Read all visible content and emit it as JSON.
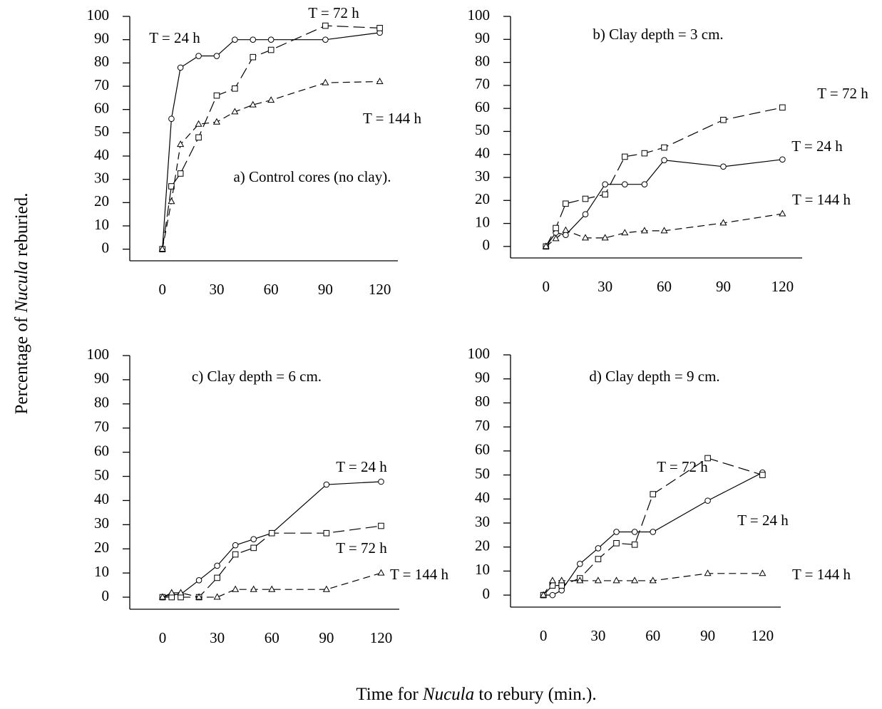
{
  "figure": {
    "y_label": {
      "before": "Percentage of",
      "italic": "Nucula",
      "after": "reburied."
    },
    "x_label": {
      "before": "Time for",
      "italic": "Nucula",
      "after": "to rebury (min.)."
    }
  },
  "chart_data": [
    {
      "type": "line",
      "title": "a) Control cores (no clay).",
      "xlim": [
        -18,
        130
      ],
      "ylim": [
        -5,
        100
      ],
      "xticks": [
        0,
        30,
        60,
        90,
        120
      ],
      "yticks": [
        0,
        10,
        20,
        30,
        40,
        50,
        60,
        70,
        80,
        90,
        100
      ],
      "x": [
        0,
        5,
        10,
        20,
        30,
        40,
        50,
        60,
        90,
        120
      ],
      "series": [
        {
          "name": "T = 24 h",
          "color": "#000000",
          "marker": "circle",
          "dash": "solid",
          "values": [
            0,
            56,
            78,
            83,
            83,
            90,
            90,
            90,
            90,
            93
          ]
        },
        {
          "name": "T = 72 h",
          "color": "#000000",
          "marker": "square",
          "dash": "long",
          "values": [
            0,
            27,
            32.5,
            48,
            66,
            69,
            82.5,
            85.6,
            96,
            95
          ]
        },
        {
          "name": "T = 144 h",
          "color": "#000000",
          "marker": "triangle",
          "dash": "medium",
          "values": [
            0,
            20.5,
            45,
            53.7,
            54.6,
            59,
            62,
            64,
            71.5,
            72
          ]
        }
      ]
    },
    {
      "type": "line",
      "title": "b)  Clay depth =  3 cm.",
      "xlim": [
        -18,
        130
      ],
      "ylim": [
        -5,
        100
      ],
      "xticks": [
        0,
        30,
        60,
        90,
        120
      ],
      "yticks": [
        0,
        10,
        20,
        30,
        40,
        50,
        60,
        70,
        80,
        90,
        100
      ],
      "x": [
        0,
        5,
        10,
        20,
        30,
        40,
        50,
        60,
        90,
        120
      ],
      "series": [
        {
          "name": "T = 24 h",
          "color": "#000000",
          "marker": "circle",
          "dash": "solid",
          "values": [
            0,
            6,
            5,
            14,
            27,
            27,
            27,
            37.5,
            34.7,
            37.8
          ]
        },
        {
          "name": "T = 72 h",
          "color": "#000000",
          "marker": "square",
          "dash": "long",
          "values": [
            0,
            8,
            18.6,
            20.7,
            22.6,
            39,
            40.5,
            43,
            55,
            60.4
          ]
        },
        {
          "name": "T = 144 h",
          "color": "#000000",
          "marker": "triangle",
          "dash": "medium",
          "values": [
            0,
            3.4,
            7,
            3.7,
            3.7,
            5.9,
            6.8,
            6.8,
            10.2,
            14.2
          ]
        }
      ]
    },
    {
      "type": "line",
      "title": "c) Clay depth = 6 cm.",
      "xlim": [
        -18,
        130
      ],
      "ylim": [
        -5,
        100
      ],
      "xticks": [
        0,
        30,
        60,
        90,
        120
      ],
      "yticks": [
        0,
        10,
        20,
        30,
        40,
        50,
        60,
        70,
        80,
        90,
        100
      ],
      "x": [
        0,
        5,
        10,
        20,
        30,
        40,
        50,
        60,
        90,
        120
      ],
      "series": [
        {
          "name": "T = 24 h",
          "color": "#000000",
          "marker": "circle",
          "dash": "solid",
          "values": [
            0,
            1,
            1.2,
            7,
            13,
            21.5,
            24,
            26.5,
            46.6,
            47.8
          ]
        },
        {
          "name": "T = 72 h",
          "color": "#000000",
          "marker": "square",
          "dash": "long",
          "values": [
            0,
            0,
            0,
            0,
            8,
            17.7,
            20.4,
            26.5,
            26.5,
            29.5
          ]
        },
        {
          "name": "T = 144 h",
          "color": "#000000",
          "marker": "triangle",
          "dash": "medium",
          "values": [
            0,
            1.8,
            1.8,
            0,
            0,
            3.2,
            3.2,
            3.2,
            3.2,
            10
          ]
        }
      ]
    },
    {
      "type": "line",
      "title": "d) Clay depth = 9 cm.",
      "xlim": [
        -18,
        130
      ],
      "ylim": [
        -5,
        100
      ],
      "xticks": [
        0,
        30,
        60,
        90,
        120
      ],
      "yticks": [
        0,
        10,
        20,
        30,
        40,
        50,
        60,
        70,
        80,
        90,
        100
      ],
      "x": [
        0,
        5,
        10,
        20,
        30,
        40,
        50,
        60,
        90,
        120
      ],
      "series": [
        {
          "name": "T = 24 h",
          "color": "#000000",
          "marker": "circle",
          "dash": "solid",
          "values": [
            0,
            0,
            2,
            13,
            19.5,
            26.3,
            26.3,
            26.3,
            39.3,
            51
          ]
        },
        {
          "name": "T = 72 h",
          "color": "#000000",
          "marker": "square",
          "dash": "long",
          "values": [
            0,
            4,
            4,
            7,
            15,
            21.6,
            21,
            42,
            57,
            50
          ]
        },
        {
          "name": "T = 144 h",
          "color": "#000000",
          "marker": "triangle",
          "dash": "medium",
          "values": [
            0,
            6,
            6,
            6,
            6,
            6,
            6,
            6,
            9,
            9
          ]
        }
      ]
    }
  ]
}
